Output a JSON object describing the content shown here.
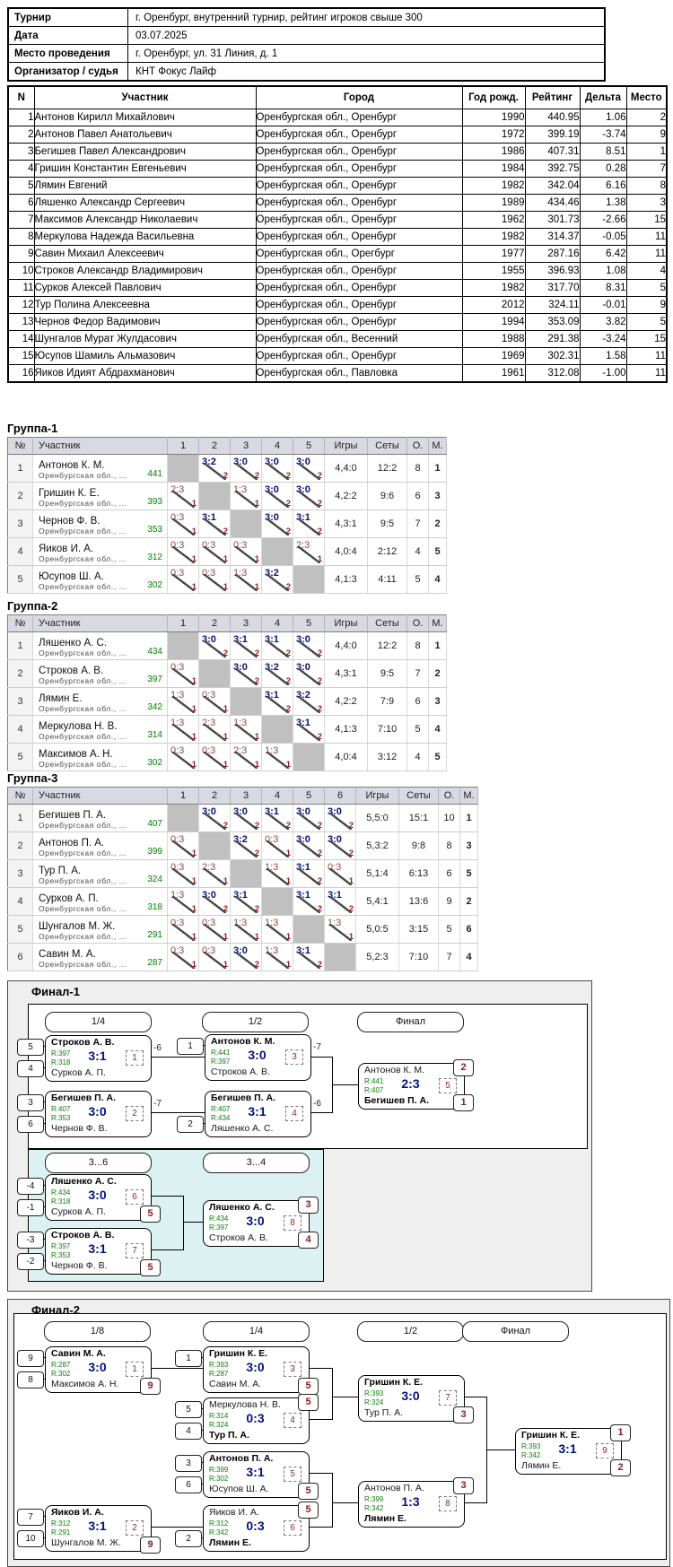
{
  "info": {
    "rows": [
      {
        "label": "Турнир",
        "value": "г. Оренбург, внутренний турнир, рейтинг игроков свыше 300"
      },
      {
        "label": "Дата",
        "value": "03.07.2025"
      },
      {
        "label": "Место проведения",
        "value": "г. Оренбург, ул. 31 Линия, д. 1"
      },
      {
        "label": "Организатор / судья",
        "value": "КНТ Фокус Лайф"
      }
    ]
  },
  "players_table": {
    "headers": [
      "N",
      "Участник",
      "Город",
      "Год рожд.",
      "Рейтинг",
      "Дельта",
      "Место"
    ],
    "rows": [
      [
        "1",
        "Антонов Кирилл Михайлович",
        "Оренбургская обл., Оренбург",
        "1990",
        "440.95",
        "1.06",
        "2"
      ],
      [
        "2",
        "Антонов Павел Анатольевич",
        "Оренбургская обл., Оренбург",
        "1972",
        "399.19",
        "-3.74",
        "9"
      ],
      [
        "3",
        "Бегишев Павел Александрович",
        "Оренбургская обл., Оренбург",
        "1986",
        "407.31",
        "8.51",
        "1"
      ],
      [
        "4",
        "Гришин Константин Евгеньевич",
        "Оренбургская обл., Оренбург",
        "1984",
        "392.75",
        "0.28",
        "7"
      ],
      [
        "5",
        "Лямин Евгений",
        "Оренбургская обл., Оренбург",
        "1982",
        "342.04",
        "6.16",
        "8"
      ],
      [
        "6",
        "Ляшенко Александр Сергеевич",
        "Оренбургская обл., Оренбург",
        "1989",
        "434.46",
        "1.38",
        "3"
      ],
      [
        "7",
        "Максимов Александр Николаевич",
        "Оренбургская обл., Оренбург",
        "1962",
        "301.73",
        "-2.66",
        "15"
      ],
      [
        "8",
        "Меркулова Надежда Васильевна",
        "Оренбургская обл., Оренбург",
        "1982",
        "314.37",
        "-0.05",
        "11"
      ],
      [
        "9",
        "Савин Михаил Алексеевич",
        "Оренбургская обл., Орегбург",
        "1977",
        "287.16",
        "6.42",
        "11"
      ],
      [
        "10",
        "Строков Александр Владимирович",
        "Оренбургская обл., Оренбург",
        "1955",
        "396.93",
        "1.08",
        "4"
      ],
      [
        "11",
        "Сурков Алексей Павлович",
        "Оренбургская обл., Оренбург",
        "1982",
        "317.70",
        "8.31",
        "5"
      ],
      [
        "12",
        "Тур Полина Алексеевна",
        "Оренбургская обл., Оренбург",
        "2012",
        "324.11",
        "-0.01",
        "9"
      ],
      [
        "13",
        "Чернов Федор Вадимович",
        "Оренбургская обл., Оренбург",
        "1994",
        "353.09",
        "3.82",
        "5"
      ],
      [
        "14",
        "Шунгалов Мурат Жулдасович",
        "Оренбургская обл., Весенний",
        "1988",
        "291.38",
        "-3.24",
        "15"
      ],
      [
        "15",
        "Юсупов Шамиль Альмазович",
        "Оренбургская обл., Оренбург",
        "1969",
        "302.31",
        "1.58",
        "11"
      ],
      [
        "16",
        "Яиков Идият Абдрахманович",
        "Оренбургская обл., Павловка",
        "1961",
        "312.08",
        "-1.00",
        "11"
      ]
    ]
  },
  "group_common_headers": {
    "n": "№",
    "participant": "Участник",
    "games": "Игры",
    "sets": "Сеты",
    "pts": "О.",
    "place": "М."
  },
  "groups": [
    {
      "title": "Группа-1",
      "round_numbers": [
        "1",
        "2",
        "3",
        "4",
        "5"
      ],
      "rows": [
        {
          "n": "1",
          "name": "Антонов К. М.",
          "sub": "Оренбургская обл., ...",
          "rating": "441",
          "cells": [
            {
              "d": 1
            },
            {
              "s": "3:2",
              "p": "2",
              "w": 1
            },
            {
              "s": "3:0",
              "p": "2",
              "w": 1
            },
            {
              "s": "3:0",
              "p": "2",
              "w": 1
            },
            {
              "s": "3:0",
              "p": "2",
              "w": 1
            }
          ],
          "games": "4,4:0",
          "sets": "12:2",
          "pts": "8",
          "place": "1"
        },
        {
          "n": "2",
          "name": "Гришин К. Е.",
          "sub": "Оренбургская обл., ...",
          "rating": "393",
          "cells": [
            {
              "s": "2:3",
              "p": "1"
            },
            {
              "d": 1
            },
            {
              "s": "1:3",
              "p": "1"
            },
            {
              "s": "3:0",
              "p": "2",
              "w": 1
            },
            {
              "s": "3:0",
              "p": "2",
              "w": 1
            }
          ],
          "games": "4,2:2",
          "sets": "9:6",
          "pts": "6",
          "place": "3"
        },
        {
          "n": "3",
          "name": "Чернов Ф. В.",
          "sub": "Оренбургская обл., ...",
          "rating": "353",
          "cells": [
            {
              "s": "0:3",
              "p": "1"
            },
            {
              "s": "3:1",
              "p": "2",
              "w": 1
            },
            {
              "d": 1
            },
            {
              "s": "3:0",
              "p": "2",
              "w": 1
            },
            {
              "s": "3:1",
              "p": "2",
              "w": 1
            }
          ],
          "games": "4,3:1",
          "sets": "9:5",
          "pts": "7",
          "place": "2"
        },
        {
          "n": "4",
          "name": "Яиков И. А.",
          "sub": "Оренбургская обл., ...",
          "rating": "312",
          "cells": [
            {
              "s": "0:3",
              "p": "1"
            },
            {
              "s": "0:3",
              "p": "1"
            },
            {
              "s": "0:3",
              "p": "1"
            },
            {
              "d": 1
            },
            {
              "s": "2:3",
              "p": "1"
            }
          ],
          "games": "4,0:4",
          "sets": "2:12",
          "pts": "4",
          "place": "5"
        },
        {
          "n": "5",
          "name": "Юсупов Ш. А.",
          "sub": "Оренбургская обл., ...",
          "rating": "302",
          "cells": [
            {
              "s": "0:3",
              "p": "1"
            },
            {
              "s": "0:3",
              "p": "1"
            },
            {
              "s": "1:3",
              "p": "1"
            },
            {
              "s": "3:2",
              "p": "2",
              "w": 1
            },
            {
              "d": 1
            }
          ],
          "games": "4,1:3",
          "sets": "4:11",
          "pts": "5",
          "place": "4"
        }
      ]
    },
    {
      "title": "Группа-2",
      "round_numbers": [
        "1",
        "2",
        "3",
        "4",
        "5"
      ],
      "rows": [
        {
          "n": "1",
          "name": "Ляшенко А. С.",
          "sub": "Оренбургская обл., ...",
          "rating": "434",
          "cells": [
            {
              "d": 1
            },
            {
              "s": "3:0",
              "p": "2",
              "w": 1
            },
            {
              "s": "3:1",
              "p": "2",
              "w": 1
            },
            {
              "s": "3:1",
              "p": "2",
              "w": 1
            },
            {
              "s": "3:0",
              "p": "2",
              "w": 1
            }
          ],
          "games": "4,4:0",
          "sets": "12:2",
          "pts": "8",
          "place": "1"
        },
        {
          "n": "2",
          "name": "Строков А. В.",
          "sub": "Оренбургская обл., ...",
          "rating": "397",
          "cells": [
            {
              "s": "0:3",
              "p": "1"
            },
            {
              "d": 1
            },
            {
              "s": "3:0",
              "p": "2",
              "w": 1
            },
            {
              "s": "3:2",
              "p": "2",
              "w": 1
            },
            {
              "s": "3:0",
              "p": "2",
              "w": 1
            }
          ],
          "games": "4,3:1",
          "sets": "9:5",
          "pts": "7",
          "place": "2"
        },
        {
          "n": "3",
          "name": "Лямин Е.",
          "sub": "Оренбургская обл., ...",
          "rating": "342",
          "cells": [
            {
              "s": "1:3",
              "p": "1"
            },
            {
              "s": "0:3",
              "p": "1"
            },
            {
              "d": 1
            },
            {
              "s": "3:1",
              "p": "2",
              "w": 1
            },
            {
              "s": "3:2",
              "p": "2",
              "w": 1
            }
          ],
          "games": "4,2:2",
          "sets": "7:9",
          "pts": "6",
          "place": "3"
        },
        {
          "n": "4",
          "name": "Меркулова Н. В.",
          "sub": "Оренбургская обл., ...",
          "rating": "314",
          "cells": [
            {
              "s": "1:3",
              "p": "1"
            },
            {
              "s": "2:3",
              "p": "1"
            },
            {
              "s": "1:3",
              "p": "1"
            },
            {
              "d": 1
            },
            {
              "s": "3:1",
              "p": "2",
              "w": 1
            }
          ],
          "games": "4,1:3",
          "sets": "7:10",
          "pts": "5",
          "place": "4"
        },
        {
          "n": "5",
          "name": "Максимов А. Н.",
          "sub": "Оренбургская обл., ...",
          "rating": "302",
          "cells": [
            {
              "s": "0:3",
              "p": "1"
            },
            {
              "s": "0:3",
              "p": "1"
            },
            {
              "s": "2:3",
              "p": "1"
            },
            {
              "s": "1:3",
              "p": "1"
            },
            {
              "d": 1
            }
          ],
          "games": "4,0:4",
          "sets": "3:12",
          "pts": "4",
          "place": "5"
        }
      ]
    },
    {
      "title": "Группа-3",
      "round_numbers": [
        "1",
        "2",
        "3",
        "4",
        "5",
        "6"
      ],
      "rows": [
        {
          "n": "1",
          "name": "Бегишев П. А.",
          "sub": "Оренбургская обл., ...",
          "rating": "407",
          "cells": [
            {
              "d": 1
            },
            {
              "s": "3:0",
              "p": "2",
              "w": 1
            },
            {
              "s": "3:0",
              "p": "2",
              "w": 1
            },
            {
              "s": "3:1",
              "p": "2",
              "w": 1
            },
            {
              "s": "3:0",
              "p": "2",
              "w": 1
            },
            {
              "s": "3:0",
              "p": "2",
              "w": 1
            }
          ],
          "games": "5,5:0",
          "sets": "15:1",
          "pts": "10",
          "place": "1"
        },
        {
          "n": "2",
          "name": "Антонов П. А.",
          "sub": "Оренбургская обл., ...",
          "rating": "399",
          "cells": [
            {
              "s": "0:3",
              "p": "1"
            },
            {
              "d": 1
            },
            {
              "s": "3:2",
              "p": "2",
              "w": 1
            },
            {
              "s": "0:3",
              "p": "1"
            },
            {
              "s": "3:0",
              "p": "2",
              "w": 1
            },
            {
              "s": "3:0",
              "p": "2",
              "w": 1
            }
          ],
          "games": "5,3:2",
          "sets": "9:8",
          "pts": "8",
          "place": "3"
        },
        {
          "n": "3",
          "name": "Тур П. А.",
          "sub": "Оренбургская обл., ...",
          "rating": "324",
          "cells": [
            {
              "s": "0:3",
              "p": "1"
            },
            {
              "s": "2:3",
              "p": "1"
            },
            {
              "d": 1
            },
            {
              "s": "1:3",
              "p": "1"
            },
            {
              "s": "3:1",
              "p": "2",
              "w": 1
            },
            {
              "s": "0:3",
              "p": "1"
            }
          ],
          "games": "5,1:4",
          "sets": "6:13",
          "pts": "6",
          "place": "5"
        },
        {
          "n": "4",
          "name": "Сурков А. П.",
          "sub": "Оренбургская обл., ...",
          "rating": "318",
          "cells": [
            {
              "s": "1:3",
              "p": "1"
            },
            {
              "s": "3:0",
              "p": "2",
              "w": 1
            },
            {
              "s": "3:1",
              "p": "2",
              "w": 1
            },
            {
              "d": 1
            },
            {
              "s": "3:1",
              "p": "2",
              "w": 1
            },
            {
              "s": "3:1",
              "p": "2",
              "w": 1
            }
          ],
          "games": "5,4:1",
          "sets": "13:6",
          "pts": "9",
          "place": "2"
        },
        {
          "n": "5",
          "name": "Шунгалов М. Ж.",
          "sub": "Оренбургская обл., ...",
          "rating": "291",
          "cells": [
            {
              "s": "0:3",
              "p": "1"
            },
            {
              "s": "0:3",
              "p": "1"
            },
            {
              "s": "1:3",
              "p": "1"
            },
            {
              "s": "1:3",
              "p": "1"
            },
            {
              "d": 1
            },
            {
              "s": "1:3",
              "p": "1"
            }
          ],
          "games": "5,0:5",
          "sets": "3:15",
          "pts": "5",
          "place": "6"
        },
        {
          "n": "6",
          "name": "Савин М. А.",
          "sub": "Оренбургская обл., ...",
          "rating": "287",
          "cells": [
            {
              "s": "0:3",
              "p": "1"
            },
            {
              "s": "0:3",
              "p": "1"
            },
            {
              "s": "3:0",
              "p": "2",
              "w": 1
            },
            {
              "s": "1:3",
              "p": "1"
            },
            {
              "s": "3:1",
              "p": "2",
              "w": 1
            },
            {
              "d": 1
            }
          ],
          "games": "5,2:3",
          "sets": "7:10",
          "pts": "7",
          "place": "4"
        }
      ]
    }
  ],
  "final1": {
    "title": "Финал-1",
    "round_labels": [
      "1/4",
      "1/2",
      "Финал"
    ],
    "consolation_labels": [
      "3...6",
      "3...4"
    ],
    "matches": [
      {
        "num": "1",
        "seedT": "5",
        "seedB": "4",
        "top": "Строков А. В.",
        "rT": "R:397",
        "bot": "Сурков А. П.",
        "rB": "R:318",
        "score": "3:1",
        "win": "t",
        "tag": "-6"
      },
      {
        "num": "2",
        "seedT": "3",
        "seedB": "6",
        "top": "Бегишев П. А.",
        "rT": "R:407",
        "bot": "Чернов Ф. В.",
        "rB": "R:353",
        "score": "3:0",
        "win": "t",
        "tag": "-7"
      },
      {
        "num": "3",
        "seedT": "1",
        "top": "Антонов К. М.",
        "rT": "R:441",
        "bot": "Строков А. В.",
        "rB": "R:397",
        "score": "3:0",
        "win": "t",
        "tag": "-7"
      },
      {
        "num": "4",
        "seedB": "2",
        "top": "Бегишев П. А.",
        "rT": "R:407",
        "bot": "Ляшенко А. С.",
        "rB": "R:434",
        "score": "3:1",
        "win": "t",
        "tag": "-6"
      },
      {
        "num": "5",
        "top": "Антонов К. М.",
        "rT": "R:441",
        "bot": "Бегишев П. А.",
        "rB": "R:407",
        "score": "2:3",
        "win": "b",
        "badgeT": "2",
        "badgeB": "1"
      },
      {
        "num": "6",
        "seedT": "-4",
        "seedB": "-1",
        "top": "Ляшенко А. С.",
        "rT": "R:434",
        "bot": "Сурков А. П.",
        "rB": "R:318",
        "score": "3:0",
        "win": "t",
        "badgeB": "5"
      },
      {
        "num": "7",
        "seedT": "-3",
        "seedB": "-2",
        "top": "Строков А. В.",
        "rT": "R:397",
        "bot": "Чернов Ф. В.",
        "rB": "R:353",
        "score": "3:1",
        "win": "t",
        "badgeB": "5"
      },
      {
        "num": "8",
        "top": "Ляшенко А. С.",
        "rT": "R:434",
        "bot": "Строков А. В.",
        "rB": "R:397",
        "score": "3:0",
        "win": "t",
        "badgeT": "3",
        "badgeB": "4"
      }
    ]
  },
  "final2": {
    "title": "Финал-2",
    "round_labels": [
      "1/8",
      "1/4",
      "1/2",
      "Финал"
    ],
    "matches": [
      {
        "num": "1",
        "seedT": "9",
        "seedB": "8",
        "top": "Савин М. А.",
        "rT": "R:287",
        "bot": "Максимов А. Н.",
        "rB": "R:302",
        "score": "3:0",
        "win": "t",
        "badgeB": "9"
      },
      {
        "num": "2",
        "seedT": "7",
        "seedB": "10",
        "top": "Яиков И. А.",
        "rT": "R:312",
        "bot": "Шунгалов М. Ж.",
        "rB": "R:291",
        "score": "3:1",
        "win": "t",
        "badgeB": "9"
      },
      {
        "num": "3",
        "seedT": "1",
        "top": "Гришин К. Е.",
        "rT": "R:393",
        "bot": "Савин М. А.",
        "rB": "R:287",
        "score": "3:0",
        "win": "t",
        "badgeB": "5"
      },
      {
        "num": "4",
        "seedT": "5",
        "seedB": "4",
        "top": "Меркулова Н. В.",
        "rT": "R:314",
        "bot": "Тур П. А.",
        "rB": "R:324",
        "score": "0:3",
        "win": "b",
        "badgeT": "5"
      },
      {
        "num": "5",
        "seedT": "3",
        "seedB": "6",
        "top": "Антонов П. А.",
        "rT": "R:399",
        "bot": "Юсупов Ш. А.",
        "rB": "R:302",
        "score": "3:1",
        "win": "t",
        "badgeB": "5"
      },
      {
        "num": "6",
        "seedB": "2",
        "top": "Яиков И. А.",
        "rT": "R:312",
        "bot": "Лямин Е.",
        "rB": "R:342",
        "score": "0:3",
        "win": "b",
        "badgeT": "5"
      },
      {
        "num": "7",
        "top": "Гришин К. Е.",
        "rT": "R:393",
        "bot": "Тур П. А.",
        "rB": "R:324",
        "score": "3:0",
        "win": "t",
        "badgeB": "3"
      },
      {
        "num": "8",
        "top": "Антонов П. А.",
        "rT": "R:399",
        "bot": "Лямин Е.",
        "rB": "R:342",
        "score": "1:3",
        "win": "b",
        "badgeT": "3"
      },
      {
        "num": "9",
        "top": "Гришин К. Е.",
        "rT": "R:393",
        "bot": "Лямин Е.",
        "rB": "R:342",
        "score": "3:1",
        "win": "t",
        "badgeT": "1",
        "badgeB": "2"
      }
    ]
  }
}
